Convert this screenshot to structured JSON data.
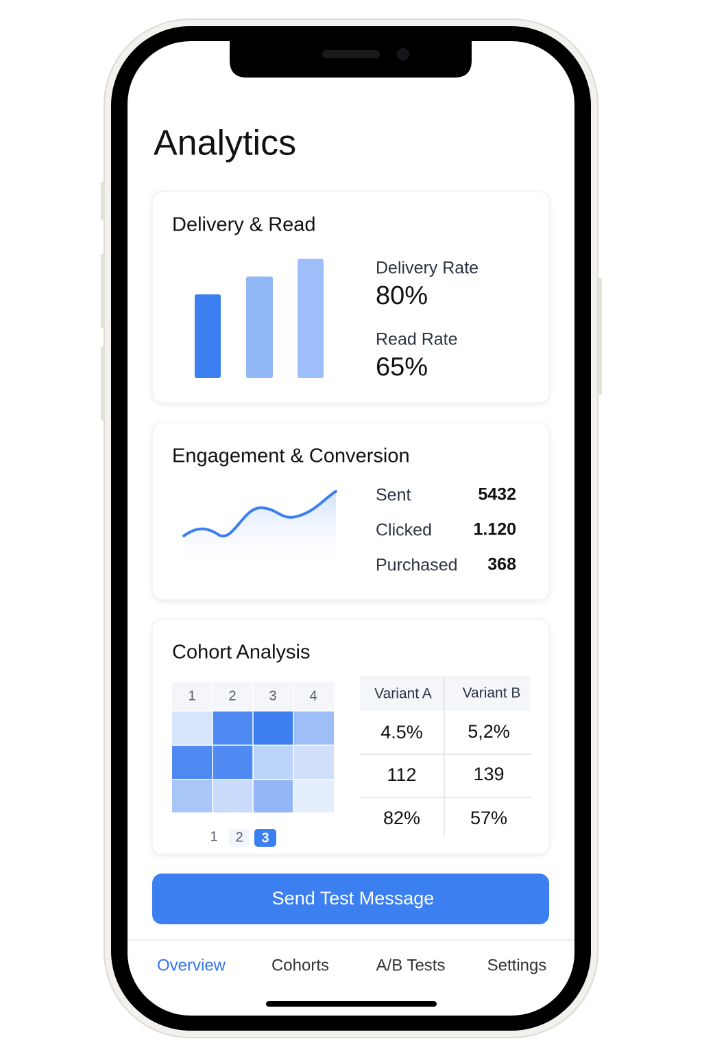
{
  "header": {
    "title": "Analytics"
  },
  "cards": [
    {
      "title": "Delivery & Read",
      "metrics": [
        {
          "label": "Delivery Rate",
          "value": "80%"
        },
        {
          "label": "Read Rate",
          "value": "65%"
        }
      ]
    },
    {
      "title": "Engagement & Conversion",
      "metrics": [
        {
          "label": "Sent",
          "value": "5432"
        },
        {
          "label": "Clicked",
          "value": "1.120"
        },
        {
          "label": "Purchased",
          "value": "368"
        }
      ]
    },
    {
      "title": "Cohort Analysis",
      "heatmap": {
        "columns": [
          "1",
          "2",
          "3",
          "4"
        ]
      },
      "pagination": [
        "1",
        "2",
        "3"
      ],
      "table": {
        "columns": [
          "Variant A",
          "Variant B"
        ],
        "rows": [
          [
            "4.5%",
            "5,2%"
          ],
          [
            "112",
            "139"
          ],
          [
            "82%",
            "57%"
          ]
        ]
      }
    }
  ],
  "button": {
    "label": "Send Test Message"
  },
  "tabs": [
    "Overview",
    "Cohorts",
    "A/B Tests",
    "Settings"
  ]
}
